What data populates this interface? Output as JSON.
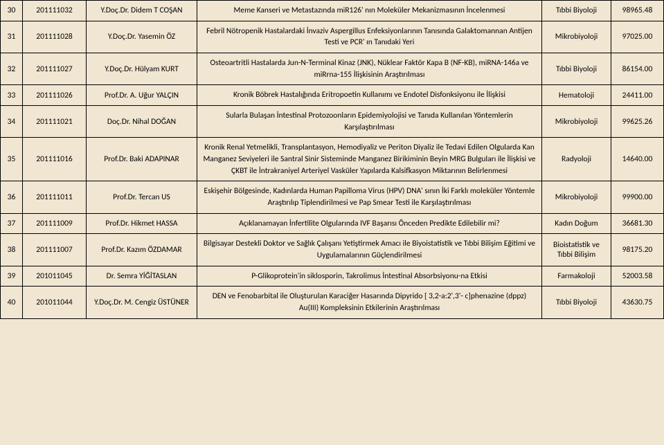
{
  "rows": [
    {
      "n": "30",
      "id": "201111032",
      "person": "Y.Doç.Dr. Didem T COŞAN",
      "desc": "Meme Kanseri ve Metastazında miR126' nın Moleküler Mekanizmasının İncelenmesi",
      "dept": "Tıbbi Biyoloji",
      "amount": "98965.48"
    },
    {
      "n": "31",
      "id": "201111028",
      "person": "Y.Doç.Dr. Yasemin ÖZ",
      "desc": "Febril Nötropenik Hastalardaki İnvaziv Aspergillus Enfeksiyonlarının Tanısında Galaktomannan Antijen Testi ve PCR' ın Tanıdaki Yeri",
      "dept": "Mikrobiyoloji",
      "amount": "97025.00"
    },
    {
      "n": "32",
      "id": "201111027",
      "person": "Y.Doç.Dr. Hülyam KURT",
      "desc": "Osteoartritli Hastalarda Jun-N-Terminal Kinaz (JNK), Nüklear Faktör Kapa B (NF-KB), miRNA-146a ve miRrna-155 İlişkisinin Araştırılması",
      "dept": "Tıbbi Biyoloji",
      "amount": "86154.00"
    },
    {
      "n": "33",
      "id": "201111026",
      "person": "Prof.Dr. A. Uğur YALÇIN",
      "desc": "Kronik Böbrek Hastalığında Eritropoetin Kullanımı ve Endotel Disfonksiyonu ile İlişkisi",
      "dept": "Hematoloji",
      "amount": "24411.00"
    },
    {
      "n": "34",
      "id": "201111021",
      "person": "Doç.Dr. Nihal DOĞAN",
      "desc": "Sularla Bulaşan İntestinal Protozoonların Epidemiyolojisi ve Tanıda Kullanılan Yöntemlerin Karşılaştırılması",
      "dept": "Mikrobiyoloji",
      "amount": "99625.26"
    },
    {
      "n": "35",
      "id": "201111016",
      "person": "Prof.Dr. Baki ADAPINAR",
      "desc": "Kronik Renal Yetmelikli, Transplantasyon, Hemodiyaliz ve Periton Diyaliz ile Tedavi Edilen Olgularda Kan Manganez Seviyeleri ile Santral Sinir Sisteminde Manganez Birikiminin Beyin MRG Bulguları ile İlişkisi ve ÇKBT ile İntrakraniyel Arteriyel Vasküler Yapılarda Kalsifkasyon Miktarının Belirlenmesi",
      "dept": "Radyoloji",
      "amount": "14640.00"
    },
    {
      "n": "36",
      "id": "201111011",
      "person": "Prof.Dr. Tercan US",
      "desc": "Eskişehir Bölgesinde, Kadınlarda Human Papilloma Virus (HPV) DNA' sının İki Farklı moleküler Yöntemle Araştırılıp Tiplendirilmesi ve Pap Smear Testi ile Karşılaştırılması",
      "dept": "Mikrobiyoloji",
      "amount": "99900.00"
    },
    {
      "n": "37",
      "id": "201111009",
      "person": "Prof.Dr. Hikmet HASSA",
      "desc": "Açıklanamayan İnfertilite Olgularında IVF Başarısı Önceden Predikte Edilebilir mi?",
      "dept": "Kadın Doğum",
      "amount": "36681.30"
    },
    {
      "n": "38",
      "id": "201111007",
      "person": "Prof.Dr. Kazım ÖZDAMAR",
      "desc": "Bilgisayar Destekli Doktor ve Sağlık Çalışanı Yetiştirmek Amacı ile Biyoistatistik ve Tıbbi Bilişim Eğitimi ve Uygulamalarının Güçlendirilmesi",
      "dept": "Bioistatistik ve Tıbbi Bilişim",
      "amount": "98175.20"
    },
    {
      "n": "39",
      "id": "201011045",
      "person": "Dr. Semra YİĞİTASLAN",
      "desc": "P-Glikoprotein'in siklosporin, Takrolimus İntestinal Absorbsiyonu-na Etkisi",
      "dept": "Farmakoloji",
      "amount": "52003.58"
    },
    {
      "n": "40",
      "id": "201011044",
      "person": "Y.Doç.Dr. M. Cengiz ÜSTÜNER",
      "desc": "DEN ve Fenobarbital ile Oluşturulan Karaciğer Hasarında Dipyrido [ 3,2-a:2',3'- c]phenazine (dppz) Au(III) Kompleksinin Etkilerinin Araştırılması",
      "dept": "Tıbbi Biyoloji",
      "amount": "43630.75"
    }
  ]
}
